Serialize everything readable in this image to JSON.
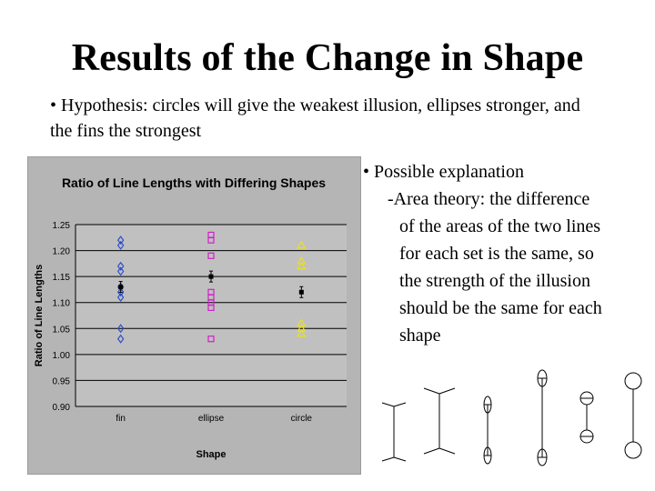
{
  "slide": {
    "title": "Results of the Change in Shape",
    "hypothesis": "• Hypothesis: circles will give the weakest illusion, ellipses stronger, and the fins the strongest",
    "explanation_heading": "• Possible explanation",
    "explanation_lines": [
      "-Area theory: the difference",
      "of the areas of the two lines",
      "for each set is the same, so",
      "the strength of the illusion",
      "should be the same for each",
      "shape"
    ]
  },
  "chart_data": {
    "type": "scatter",
    "title": "Ratio of Line Lengths with Differing Shapes",
    "xlabel": "Shape",
    "ylabel": "Ratio of Line Lengths",
    "categories": [
      "fin",
      "ellipse",
      "circle"
    ],
    "ylim": [
      0.9,
      1.25
    ],
    "yticks": [
      "1.25",
      "1.20",
      "1.15",
      "1.10",
      "1.05",
      "1.00",
      "0.95",
      "0.90"
    ],
    "grid": true,
    "series": [
      {
        "category": "fin",
        "marker": "diamond",
        "color": "#3050c8",
        "values": [
          1.22,
          1.21,
          1.17,
          1.16,
          1.13,
          1.12,
          1.11,
          1.05,
          1.03
        ],
        "mean": 1.13
      },
      {
        "category": "ellipse",
        "marker": "square",
        "color": "#d020c8",
        "values": [
          1.23,
          1.22,
          1.19,
          1.12,
          1.11,
          1.1,
          1.09,
          1.03
        ],
        "mean": 1.15
      },
      {
        "category": "circle",
        "marker": "triangle",
        "color": "#e8e020",
        "values": [
          1.21,
          1.18,
          1.17,
          1.06,
          1.05,
          1.04
        ],
        "mean": 1.12
      }
    ]
  },
  "colors": {
    "plot_background": "#c0c0c0",
    "frame_background": "#b5b5b5",
    "gridline": "#000000",
    "mean_marker": "#000000"
  }
}
